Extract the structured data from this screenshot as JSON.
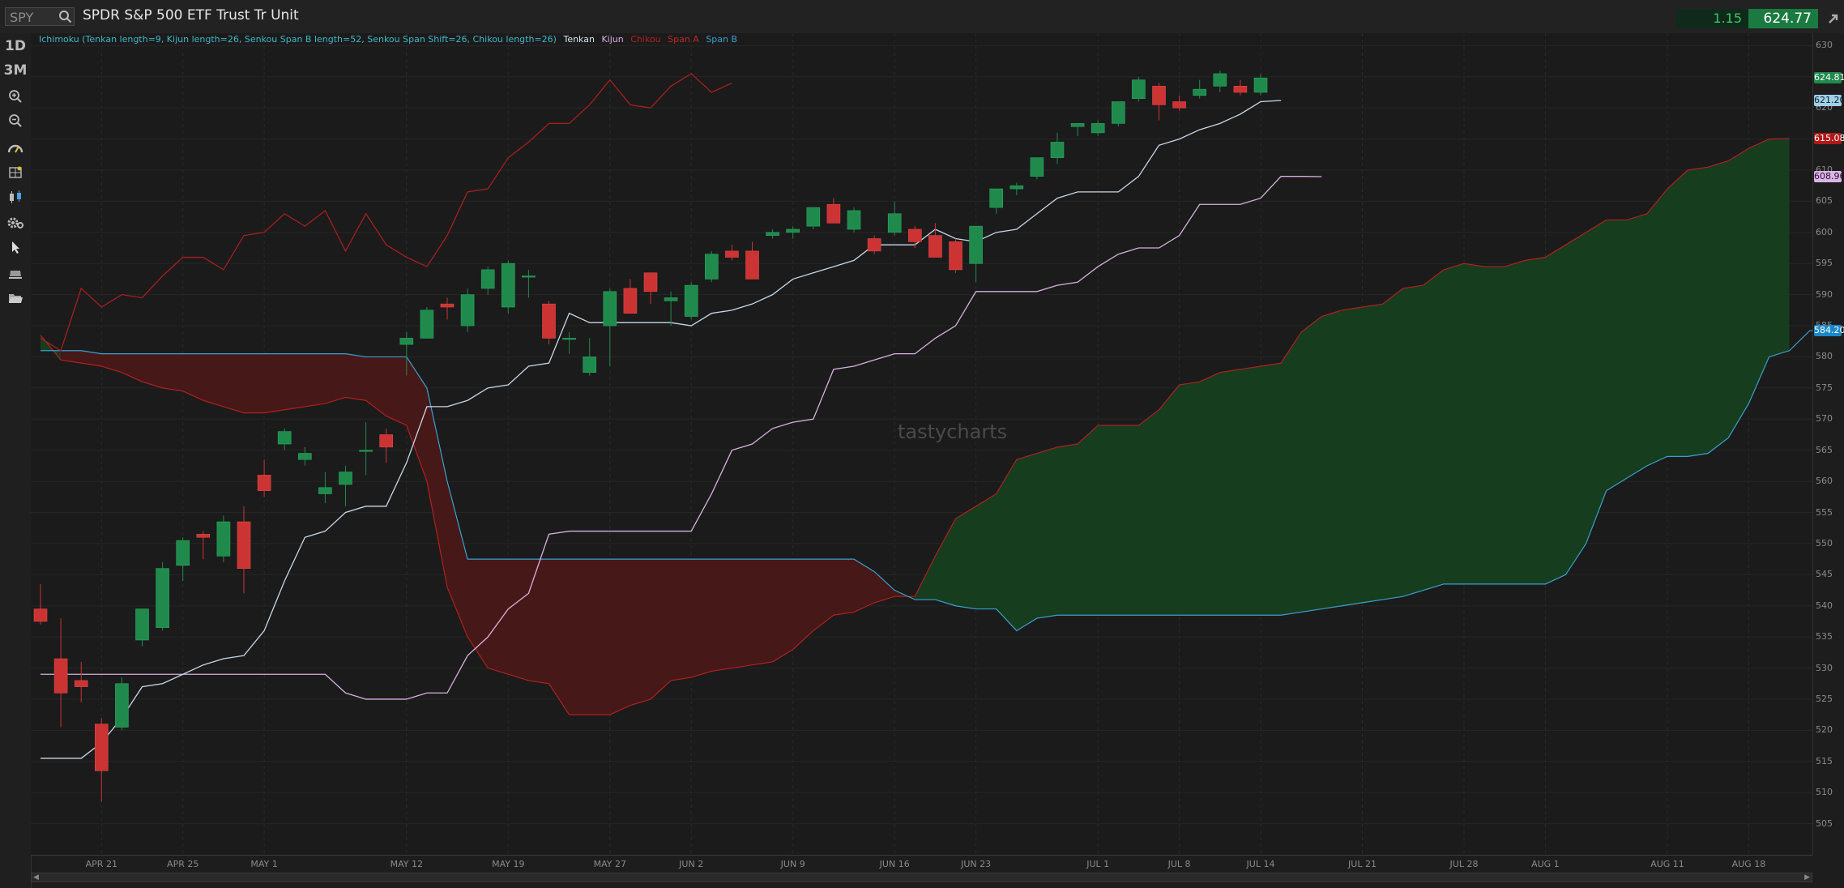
{
  "header": {
    "symbol": "SPY",
    "title": "SPDR S&P 500 ETF Trust Tr Unit",
    "net_change": "1.15",
    "last_price": "624.77"
  },
  "toolbar": {
    "period_1": "1D",
    "period_2": "3M",
    "icons": [
      "zoom-in-icon",
      "zoom-out-icon",
      "gauge-icon",
      "drawing-grid-icon",
      "candlestick-icon",
      "settings-gears-icon",
      "cursor-arrow-icon",
      "eraser-icon",
      "folder-icon"
    ]
  },
  "legend": {
    "study": "Ichimoku (Tenkan length=9, Kijun length=26, Senkou Span B length=52, Senkou Span Shift=26, Chikou length=26)",
    "tenkan": "Tenkan",
    "kijun": "Kijun",
    "chikou": "Chikou",
    "span_a": "Span A",
    "span_b": "Span B"
  },
  "watermark": "tastycharts",
  "colors": {
    "up": "#1f8a4c",
    "down": "#cc3333",
    "tenkan": "#c8d8e8",
    "kijun": "#d8b0e0",
    "chikou": "#a81e1e",
    "span_a": "#b02020",
    "span_b": "#3aa0d0",
    "bull_cloud": "#163f1e",
    "bear_cloud": "#4a1818"
  },
  "price_badges": [
    {
      "label": "624.81",
      "bg": "#1f8a4c",
      "fg": "#ffffff"
    },
    {
      "label": "621.20",
      "bg": "#9fd0e8",
      "fg": "#10202a"
    },
    {
      "label": "615.08",
      "bg": "#b01818",
      "fg": "#ffffff"
    },
    {
      "label": "608.96",
      "bg": "#d9b5e6",
      "fg": "#2a1030"
    },
    {
      "label": "584.20",
      "bg": "#1a88c8",
      "fg": "#ffffff"
    }
  ],
  "chart_data": {
    "type": "candlestick",
    "title": "SPDR S&P 500 ETF Trust Tr Unit",
    "xlabel": "",
    "ylabel": "",
    "ylim": [
      500,
      632
    ],
    "y_ticks": [
      505,
      510,
      515,
      520,
      525,
      530,
      535,
      540,
      545,
      550,
      555,
      560,
      565,
      570,
      575,
      580,
      585,
      590,
      595,
      600,
      605,
      610,
      615,
      620,
      625,
      630
    ],
    "x_tick_labels": [
      "APR 21",
      "APR 25",
      "MAY 1",
      "MAY 12",
      "MAY 19",
      "MAY 27",
      "JUN 2",
      "JUN 9",
      "JUN 16",
      "JUN 23",
      "JUL 1",
      "JUL 8",
      "JUL 14",
      "JUL 21",
      "JUL 28",
      "AUG 1",
      "AUG 11",
      "AUG 18"
    ],
    "x_tick_index": [
      3,
      7,
      11,
      18,
      23,
      28,
      32,
      37,
      42,
      46,
      52,
      56,
      60,
      65,
      70,
      74,
      80,
      84
    ],
    "n_slots": 87,
    "grid": true,
    "candles": [
      [
        539.5,
        543.5,
        537.0,
        537.5
      ],
      [
        531.5,
        538.0,
        520.5,
        526.0
      ],
      [
        528.0,
        531.0,
        524.5,
        527.0
      ],
      [
        521.0,
        522.0,
        508.5,
        513.5
      ],
      [
        520.5,
        528.5,
        520.0,
        527.5
      ],
      [
        534.5,
        539.0,
        533.5,
        539.5
      ],
      [
        536.5,
        547.0,
        536.0,
        546.0
      ],
      [
        546.5,
        551.0,
        544.0,
        550.5
      ],
      [
        551.5,
        552.0,
        547.5,
        551.0
      ],
      [
        548.0,
        554.5,
        547.0,
        553.5
      ],
      [
        553.5,
        556.0,
        542.0,
        546.0
      ],
      [
        561.0,
        563.5,
        557.5,
        558.5
      ],
      [
        566.0,
        568.5,
        565.0,
        568.0
      ],
      [
        563.5,
        565.5,
        562.5,
        564.5
      ],
      [
        558.0,
        561.5,
        556.5,
        559.0
      ],
      [
        559.5,
        562.5,
        556.0,
        561.5
      ],
      [
        565.0,
        569.5,
        561.0,
        565.0
      ],
      [
        567.5,
        568.5,
        563.0,
        565.5
      ],
      [
        582.0,
        584.0,
        577.0,
        583.0
      ],
      [
        583.0,
        588.0,
        583.0,
        587.5
      ],
      [
        588.5,
        589.5,
        586.0,
        588.0
      ],
      [
        585.0,
        591.0,
        584.0,
        590.0
      ],
      [
        591.0,
        594.5,
        590.0,
        594.0
      ],
      [
        588.0,
        595.5,
        587.0,
        595.0
      ],
      [
        593.0,
        594.0,
        589.5,
        593.0
      ],
      [
        588.5,
        589.0,
        582.0,
        583.0
      ],
      [
        583.0,
        584.0,
        580.5,
        583.0
      ],
      [
        577.5,
        583.0,
        577.0,
        580.0
      ],
      [
        585.0,
        591.0,
        578.5,
        590.5
      ],
      [
        591.0,
        592.5,
        587.0,
        587.0
      ],
      [
        593.5,
        593.5,
        588.5,
        590.5
      ],
      [
        589.0,
        590.5,
        585.0,
        589.5
      ],
      [
        586.5,
        592.0,
        586.0,
        591.5
      ],
      [
        592.5,
        597.0,
        592.0,
        596.5
      ],
      [
        597.0,
        598.0,
        595.5,
        596.0
      ],
      [
        597.0,
        598.5,
        592.5,
        592.5
      ],
      [
        599.5,
        600.5,
        599.0,
        600.0
      ],
      [
        600.0,
        601.0,
        599.0,
        600.5
      ],
      [
        601.0,
        603.5,
        600.5,
        604.0
      ],
      [
        604.5,
        605.5,
        601.5,
        601.5
      ],
      [
        600.5,
        604.0,
        600.0,
        603.5
      ],
      [
        599.0,
        599.5,
        596.5,
        597.0
      ],
      [
        600.0,
        605.0,
        599.5,
        603.0
      ],
      [
        600.5,
        601.0,
        597.5,
        598.5
      ],
      [
        599.5,
        601.5,
        596.0,
        596.0
      ],
      [
        598.5,
        599.0,
        593.5,
        594.0
      ],
      [
        595.0,
        601.0,
        592.0,
        601.0
      ],
      [
        604.0,
        607.0,
        603.0,
        607.0
      ],
      [
        607.0,
        608.0,
        606.0,
        607.5
      ],
      [
        609.0,
        612.0,
        608.5,
        612.0
      ],
      [
        612.0,
        616.0,
        611.0,
        614.5
      ],
      [
        617.0,
        617.5,
        615.5,
        617.5
      ],
      [
        616.0,
        618.0,
        615.5,
        617.5
      ],
      [
        617.5,
        620.5,
        617.0,
        621.0
      ],
      [
        621.5,
        625.0,
        621.0,
        624.5
      ],
      [
        623.5,
        624.0,
        618.0,
        620.5
      ],
      [
        621.0,
        622.0,
        619.5,
        620.0
      ],
      [
        622.0,
        624.5,
        621.5,
        623.0
      ],
      [
        623.5,
        626.0,
        622.5,
        625.5
      ],
      [
        623.5,
        624.5,
        622.0,
        622.5
      ],
      [
        622.5,
        625.5,
        622.0,
        624.81
      ]
    ],
    "series": [
      {
        "key": "tenkan",
        "values": [
          515.5,
          515.5,
          515.5,
          518.0,
          522.0,
          527.0,
          527.5,
          529.0,
          530.5,
          531.5,
          532.0,
          536.0,
          544.0,
          551.0,
          552.0,
          555.0,
          556.0,
          556.0,
          563.0,
          572.0,
          572.0,
          573.0,
          575.0,
          575.5,
          578.5,
          579.0,
          587.0,
          585.5,
          585.5,
          585.5,
          585.5,
          585.5,
          585.0,
          587.0,
          587.5,
          588.5,
          590.0,
          592.5,
          593.5,
          594.5,
          595.5,
          598.0,
          598.0,
          598.0,
          600.5,
          599.0,
          598.5,
          600.0,
          600.5,
          603.0,
          605.5,
          606.5,
          606.5,
          606.5,
          609.0,
          614.0,
          615.0,
          616.5,
          617.5,
          619.0,
          621.0,
          621.2
        ]
      },
      {
        "key": "kijun",
        "values": [
          529.0,
          529.0,
          529.0,
          529.0,
          529.0,
          529.0,
          529.0,
          529.0,
          529.0,
          529.0,
          529.0,
          529.0,
          529.0,
          529.0,
          529.0,
          526.0,
          525.0,
          525.0,
          525.0,
          526.0,
          526.0,
          532.0,
          535.0,
          539.5,
          542.0,
          551.5,
          552.0,
          552.0,
          552.0,
          552.0,
          552.0,
          552.0,
          552.0,
          558.0,
          565.0,
          566.0,
          568.5,
          569.5,
          570.0,
          578.0,
          578.5,
          579.5,
          580.5,
          580.5,
          583.0,
          585.0,
          590.5,
          590.5,
          590.5,
          590.5,
          591.5,
          592.0,
          594.5,
          596.5,
          597.5,
          597.5,
          599.5,
          604.5,
          604.5,
          604.5,
          605.5,
          609.0,
          609.0,
          608.96
        ]
      },
      {
        "key": "chikou",
        "values": [
          583.0,
          581.0,
          591.0,
          588.0,
          590.0,
          589.5,
          593.0,
          596.0,
          596.0,
          594.0,
          599.5,
          600.0,
          603.0,
          601.0,
          603.5,
          597.0,
          603.0,
          598.0,
          596.0,
          594.5,
          599.5,
          606.5,
          607.0,
          612.0,
          614.5,
          617.5,
          617.5,
          620.5,
          624.5,
          620.5,
          620.0,
          623.5,
          625.5,
          622.5,
          624.0
        ]
      },
      {
        "key": "span_a",
        "values": [
          583.5,
          579.5,
          579.0,
          578.5,
          577.5,
          576.0,
          575.0,
          574.5,
          573.0,
          572.0,
          571.0,
          571.0,
          571.5,
          572.0,
          572.5,
          573.5,
          573.0,
          570.5,
          569.0,
          560.0,
          543.0,
          535.0,
          530.0,
          529.0,
          528.0,
          527.5,
          522.5,
          522.5,
          522.5,
          524.0,
          525.0,
          528.0,
          528.5,
          529.5,
          530.0,
          530.5,
          531.0,
          533.0,
          536.0,
          538.5,
          539.0,
          540.5,
          541.5,
          541.5,
          548.0,
          554.0,
          556.0,
          558.0,
          563.5,
          564.5,
          565.5,
          566.0,
          569.0,
          569.0,
          569.0,
          571.5,
          575.5,
          576.0,
          577.5,
          578.0,
          578.5,
          579.0,
          584.0,
          586.5,
          587.5,
          588.0,
          588.5,
          591.0,
          591.5,
          594.0,
          595.0,
          594.5,
          594.5,
          595.5,
          596.0,
          598.0,
          600.0,
          602.0,
          602.0,
          603.0,
          607.0,
          610.0,
          610.5,
          611.5,
          613.5,
          615.0,
          615.08
        ]
      },
      {
        "key": "span_b",
        "values": [
          581.0,
          581.0,
          581.0,
          580.5,
          580.5,
          580.5,
          580.5,
          580.5,
          580.5,
          580.5,
          580.5,
          580.5,
          580.5,
          580.5,
          580.5,
          580.5,
          580.0,
          580.0,
          580.0,
          575.0,
          560.0,
          547.5,
          547.5,
          547.5,
          547.5,
          547.5,
          547.5,
          547.5,
          547.5,
          547.5,
          547.5,
          547.5,
          547.5,
          547.5,
          547.5,
          547.5,
          547.5,
          547.5,
          547.5,
          547.5,
          547.5,
          545.5,
          542.5,
          541.0,
          541.0,
          540.0,
          539.5,
          539.5,
          536.0,
          538.0,
          538.5,
          538.5,
          538.5,
          538.5,
          538.5,
          538.5,
          538.5,
          538.5,
          538.5,
          538.5,
          538.5,
          538.5,
          539.0,
          539.5,
          540.0,
          540.5,
          541.0,
          541.5,
          542.5,
          543.5,
          543.5,
          543.5,
          543.5,
          543.5,
          543.5,
          545.0,
          550.0,
          558.5,
          560.5,
          562.5,
          564.0,
          564.0,
          564.5,
          567.0,
          572.5,
          580.0,
          581.0,
          584.2,
          584.2
        ]
      }
    ]
  }
}
